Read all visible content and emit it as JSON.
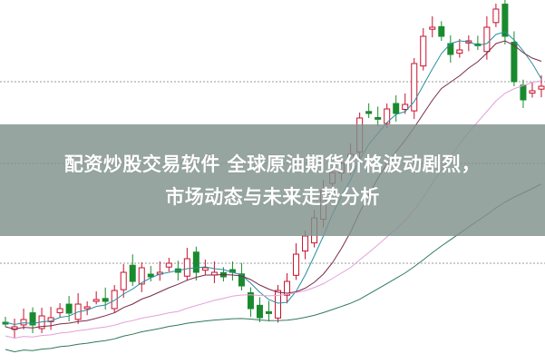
{
  "headline": {
    "line1": "配资炒股交易软件 全球原油期货价格波动剧烈，",
    "line2": "市场动态与未来走势分析"
  },
  "colors": {
    "up": "#c8102e",
    "down": "#1a8a2e",
    "banner": "#80918c",
    "ma_short": "#2a8fa0",
    "ma_mid": "#7a2a4a",
    "ma_long": "#e3a0d8",
    "ma_xlong": "#2f7a5a"
  }
}
